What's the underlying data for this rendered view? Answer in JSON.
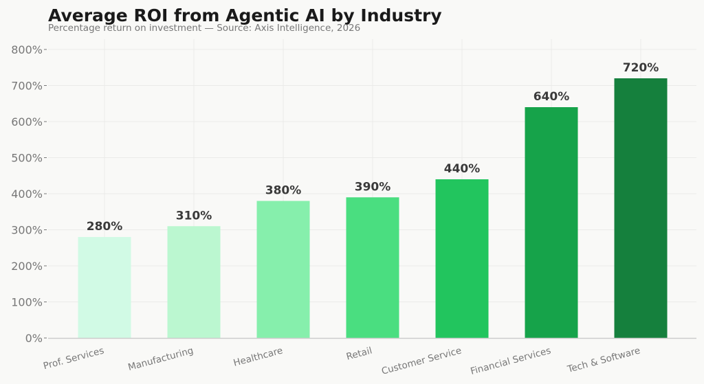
{
  "chart_data": {
    "type": "bar",
    "title": "Average ROI from Agentic AI by Industry",
    "subtitle": "Percentage return on investment — Source: Axis Intelligence, 2026",
    "xlabel": "",
    "ylabel": "",
    "categories": [
      "Prof. Services",
      "Manufacturing",
      "Healthcare",
      "Retail",
      "Customer Service",
      "Financial Services",
      "Tech & Software"
    ],
    "values": [
      280,
      310,
      380,
      390,
      440,
      640,
      720
    ],
    "data_labels": [
      "280%",
      "310%",
      "380%",
      "390%",
      "440%",
      "640%",
      "720%"
    ],
    "colors": [
      "#d1fae5",
      "#bbf7d0",
      "#86efac",
      "#4ade80",
      "#22c55e",
      "#16a34a",
      "#15803d"
    ],
    "ylim": [
      0,
      800
    ],
    "yticks": [
      0,
      100,
      200,
      300,
      400,
      500,
      600,
      700,
      800
    ],
    "ytick_labels": [
      "0%",
      "100%",
      "200%",
      "300%",
      "400%",
      "500%",
      "600%",
      "700%",
      "800%"
    ],
    "grid": true,
    "legend": "none"
  }
}
